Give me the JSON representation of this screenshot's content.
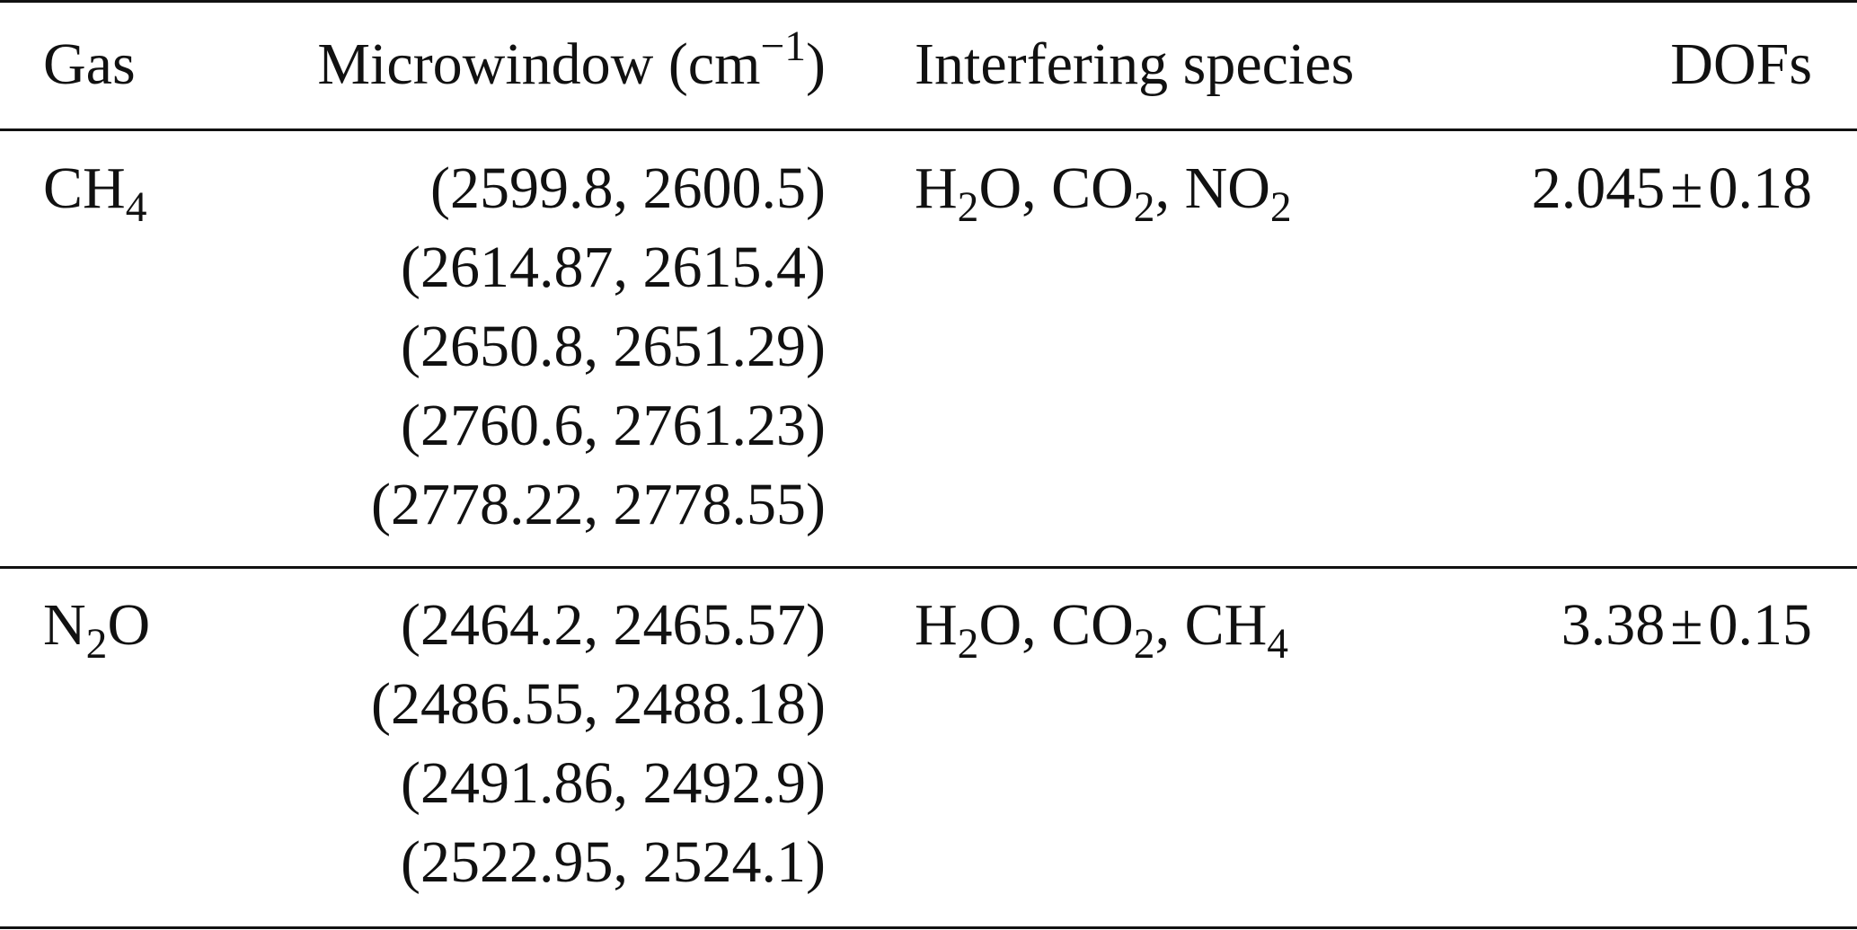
{
  "table": {
    "headers": {
      "gas": "Gas",
      "microwindow": "Microwindow (cm",
      "microwindow_sup": "−1",
      "microwindow_close": ")",
      "interfering": "Interfering species",
      "dofs": "DOFs"
    },
    "rows": [
      {
        "gas": {
          "base": "CH",
          "sub": "4",
          "tail": ""
        },
        "microwindows": [
          "(2599.8, 2600.5)",
          "(2614.87, 2615.4)",
          "(2650.8, 2651.29)",
          "(2760.6, 2761.23)",
          "(2778.22, 2778.55)"
        ],
        "interfering": {
          "s1": {
            "base": "H",
            "sub": "2",
            "tail": "O, "
          },
          "s2": {
            "base": "CO",
            "sub": "2",
            "tail": ", "
          },
          "s3": {
            "base": "NO",
            "sub": "2",
            "tail": ""
          }
        },
        "dofs": {
          "value": "2.045",
          "pm": "±",
          "err": "0.18"
        }
      },
      {
        "gas": {
          "base": "N",
          "sub": "2",
          "tail": "O"
        },
        "microwindows": [
          "(2464.2, 2465.57)",
          "(2486.55, 2488.18)",
          "(2491.86, 2492.9)",
          "(2522.95, 2524.1)"
        ],
        "interfering": {
          "s1": {
            "base": "H",
            "sub": "2",
            "tail": "O, "
          },
          "s2": {
            "base": "CO",
            "sub": "2",
            "tail": ", "
          },
          "s3": {
            "base": "CH",
            "sub": "4",
            "tail": ""
          }
        },
        "dofs": {
          "value": "3.38",
          "pm": "±",
          "err": "0.15"
        }
      }
    ]
  }
}
